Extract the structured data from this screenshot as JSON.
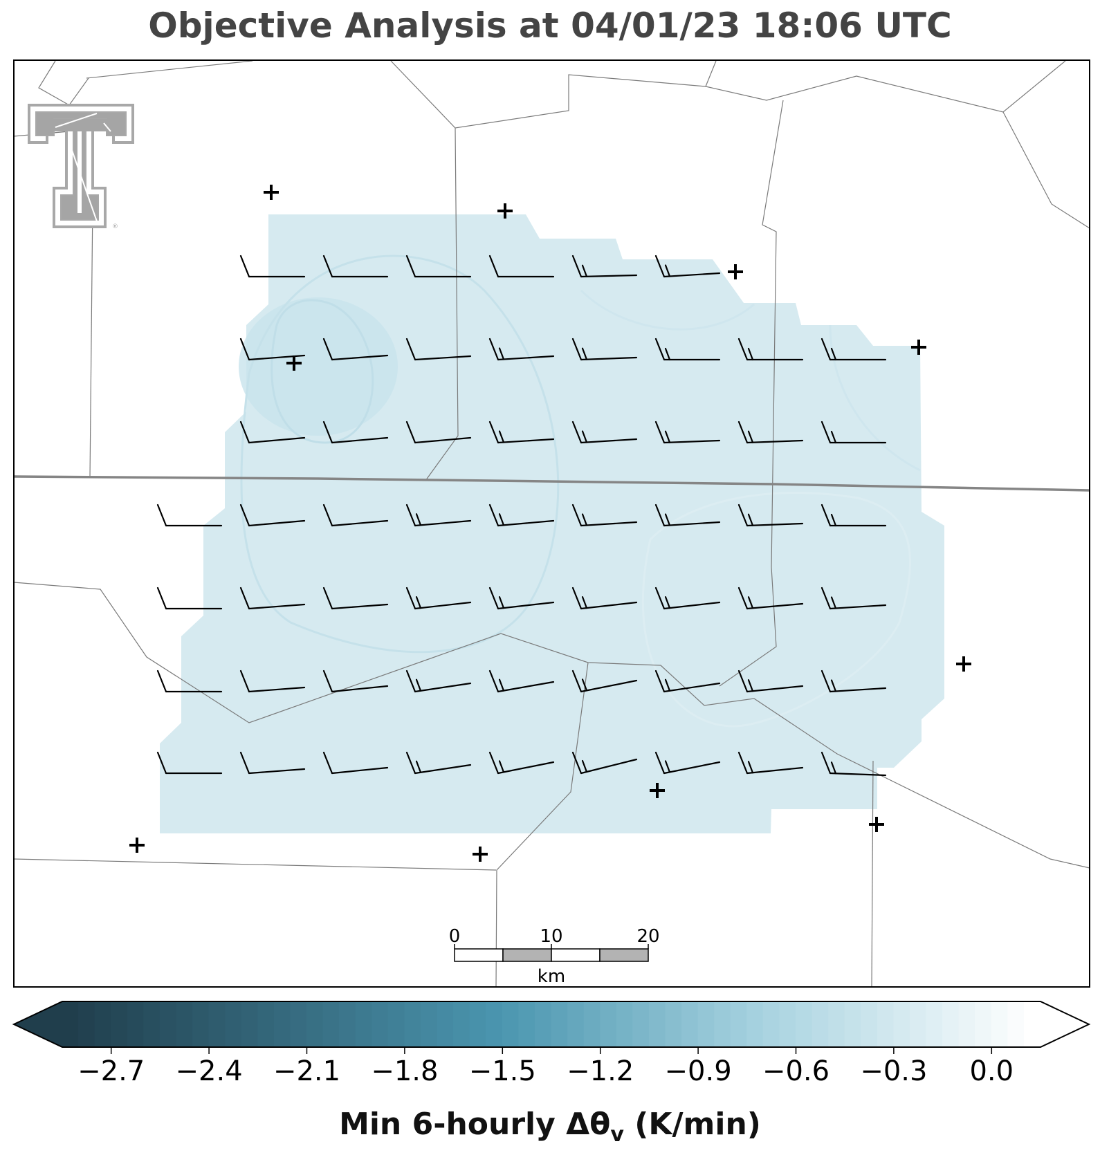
{
  "title": "Objective Analysis at 04/01/23 18:06 UTC",
  "colorbar": {
    "label": "Min 6-hourly Δθ",
    "label_subscript": "v",
    "label_unit": " (K/min)",
    "ticks": [
      "−2.7",
      "−2.4",
      "−2.1",
      "−1.8",
      "−1.5",
      "−1.2",
      "−0.9",
      "−0.6",
      "−0.3",
      "0.0"
    ],
    "tick_values": [
      -2.7,
      -2.4,
      -2.1,
      -1.8,
      -1.5,
      -1.2,
      -0.9,
      -0.6,
      -0.3,
      0.0
    ],
    "range": [
      -2.85,
      0.15
    ],
    "colors_dark": "#203e4c",
    "colors_mid": "#4b96b0",
    "colors_light": "#a8d3e0",
    "colors_end": "#ffffff"
  },
  "scale_bar": {
    "labels": [
      "0",
      "10",
      "20"
    ],
    "unit": "km"
  },
  "field": {
    "fill_color": "#d4e9ef",
    "fill_color_dark": "#c7e3ec",
    "value_min_approx": -0.65,
    "value_max_approx": -0.45
  },
  "logo": {
    "name": "texas-tech-double-t"
  }
}
